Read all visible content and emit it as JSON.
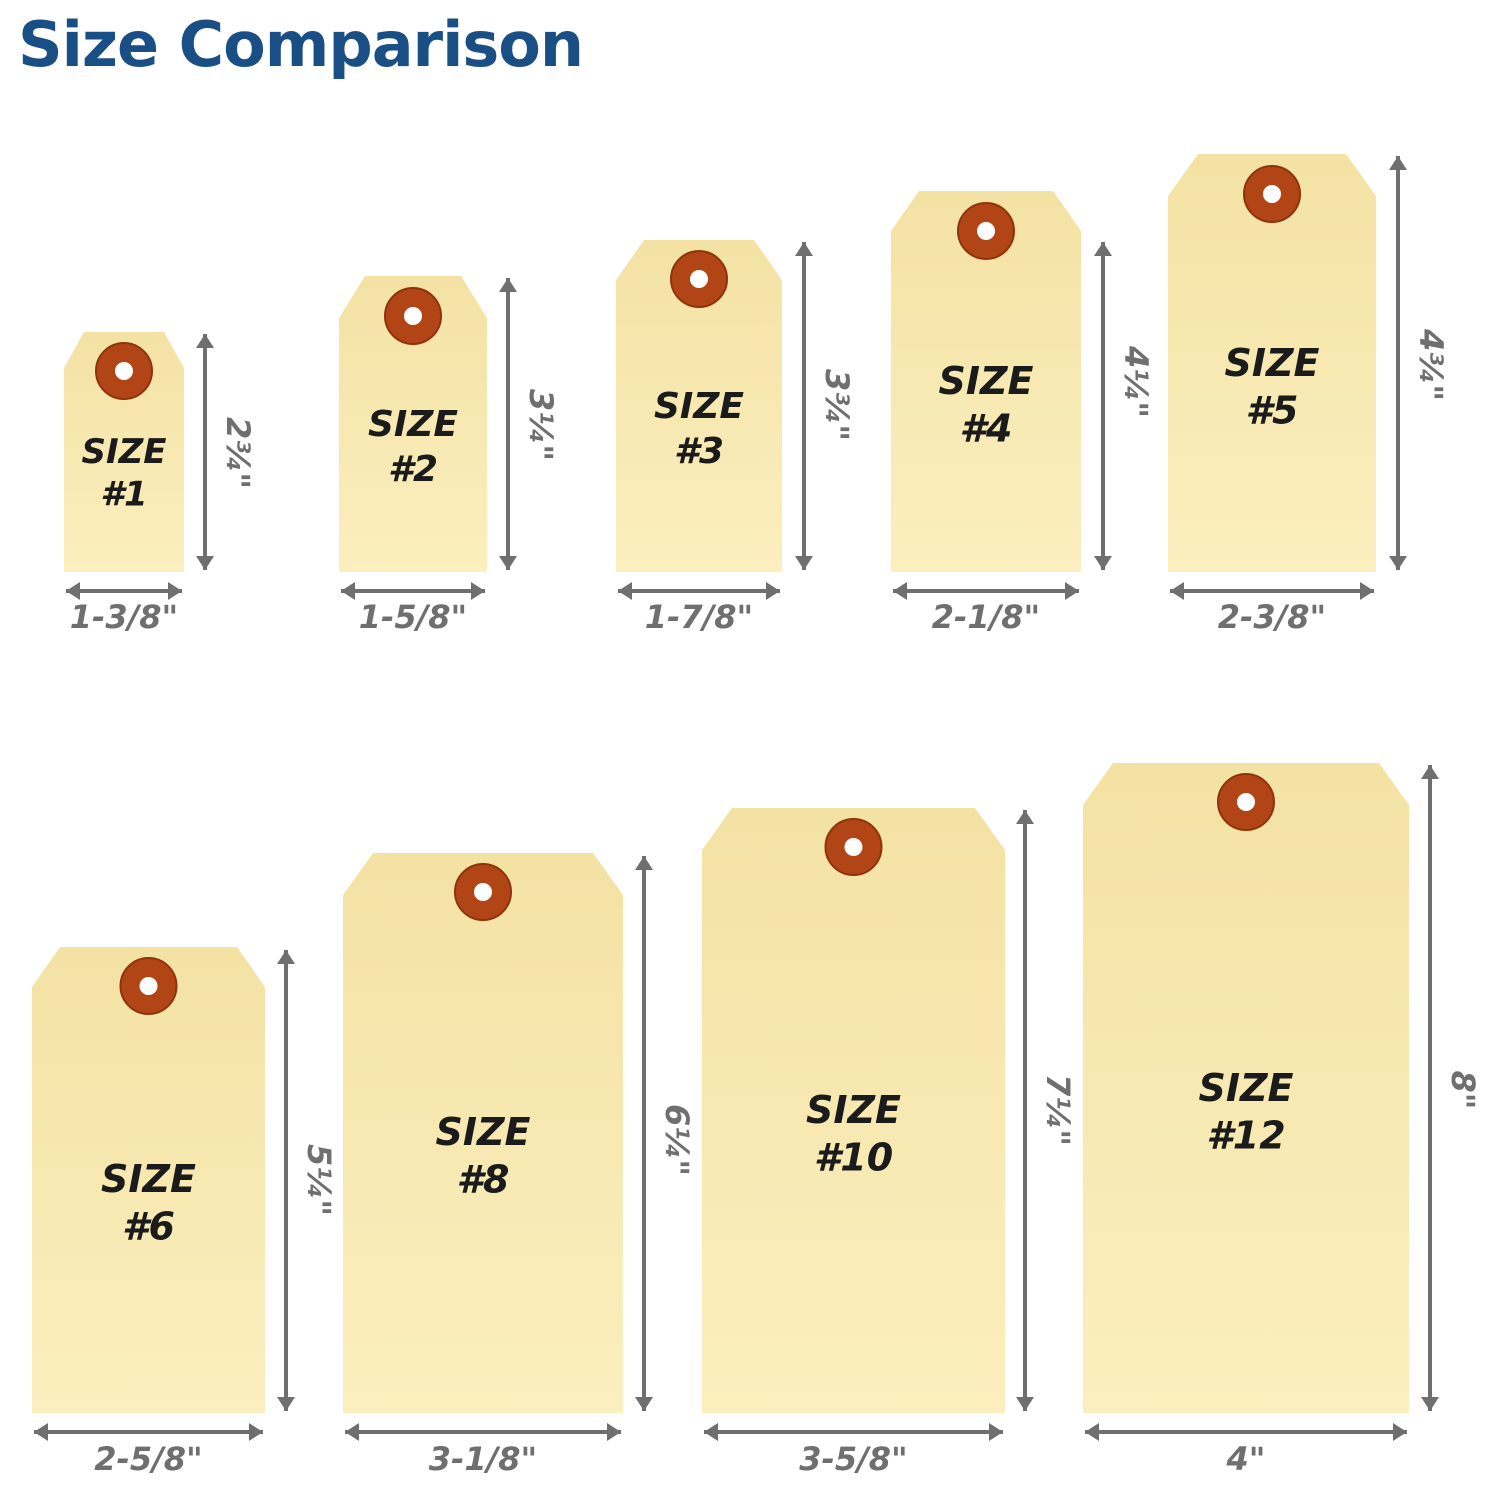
{
  "title": "Size Comparison",
  "colors": {
    "title": "#1a4f86",
    "tag_fill_light": "#fbefbf",
    "tag_fill_dark": "#f4e2a4",
    "grommet": "#b24515",
    "grommet_dark": "#8f330c",
    "arrow": "#6f6f6f",
    "label": "#1b1b1b"
  },
  "tags": [
    {
      "size_word": "SIZE",
      "number": "#1",
      "width": "1-3/8\"",
      "height": "2¾\""
    },
    {
      "size_word": "SIZE",
      "number": "#2",
      "width": "1-5/8\"",
      "height": "3¼\""
    },
    {
      "size_word": "SIZE",
      "number": "#3",
      "width": "1-7/8\"",
      "height": "3¾\""
    },
    {
      "size_word": "SIZE",
      "number": "#4",
      "width": "2-1/8\"",
      "height": "4¼\""
    },
    {
      "size_word": "SIZE",
      "number": "#5",
      "width": "2-3/8\"",
      "height": "4¾\""
    },
    {
      "size_word": "SIZE",
      "number": "#6",
      "width": "2-5/8\"",
      "height": "5¼\""
    },
    {
      "size_word": "SIZE",
      "number": "#8",
      "width": "3-1/8\"",
      "height": "6¼\""
    },
    {
      "size_word": "SIZE",
      "number": "#10",
      "width": "3-5/8\"",
      "height": "7¼\""
    },
    {
      "size_word": "SIZE",
      "number": "#12",
      "width": "4\"",
      "height": "8\""
    }
  ]
}
